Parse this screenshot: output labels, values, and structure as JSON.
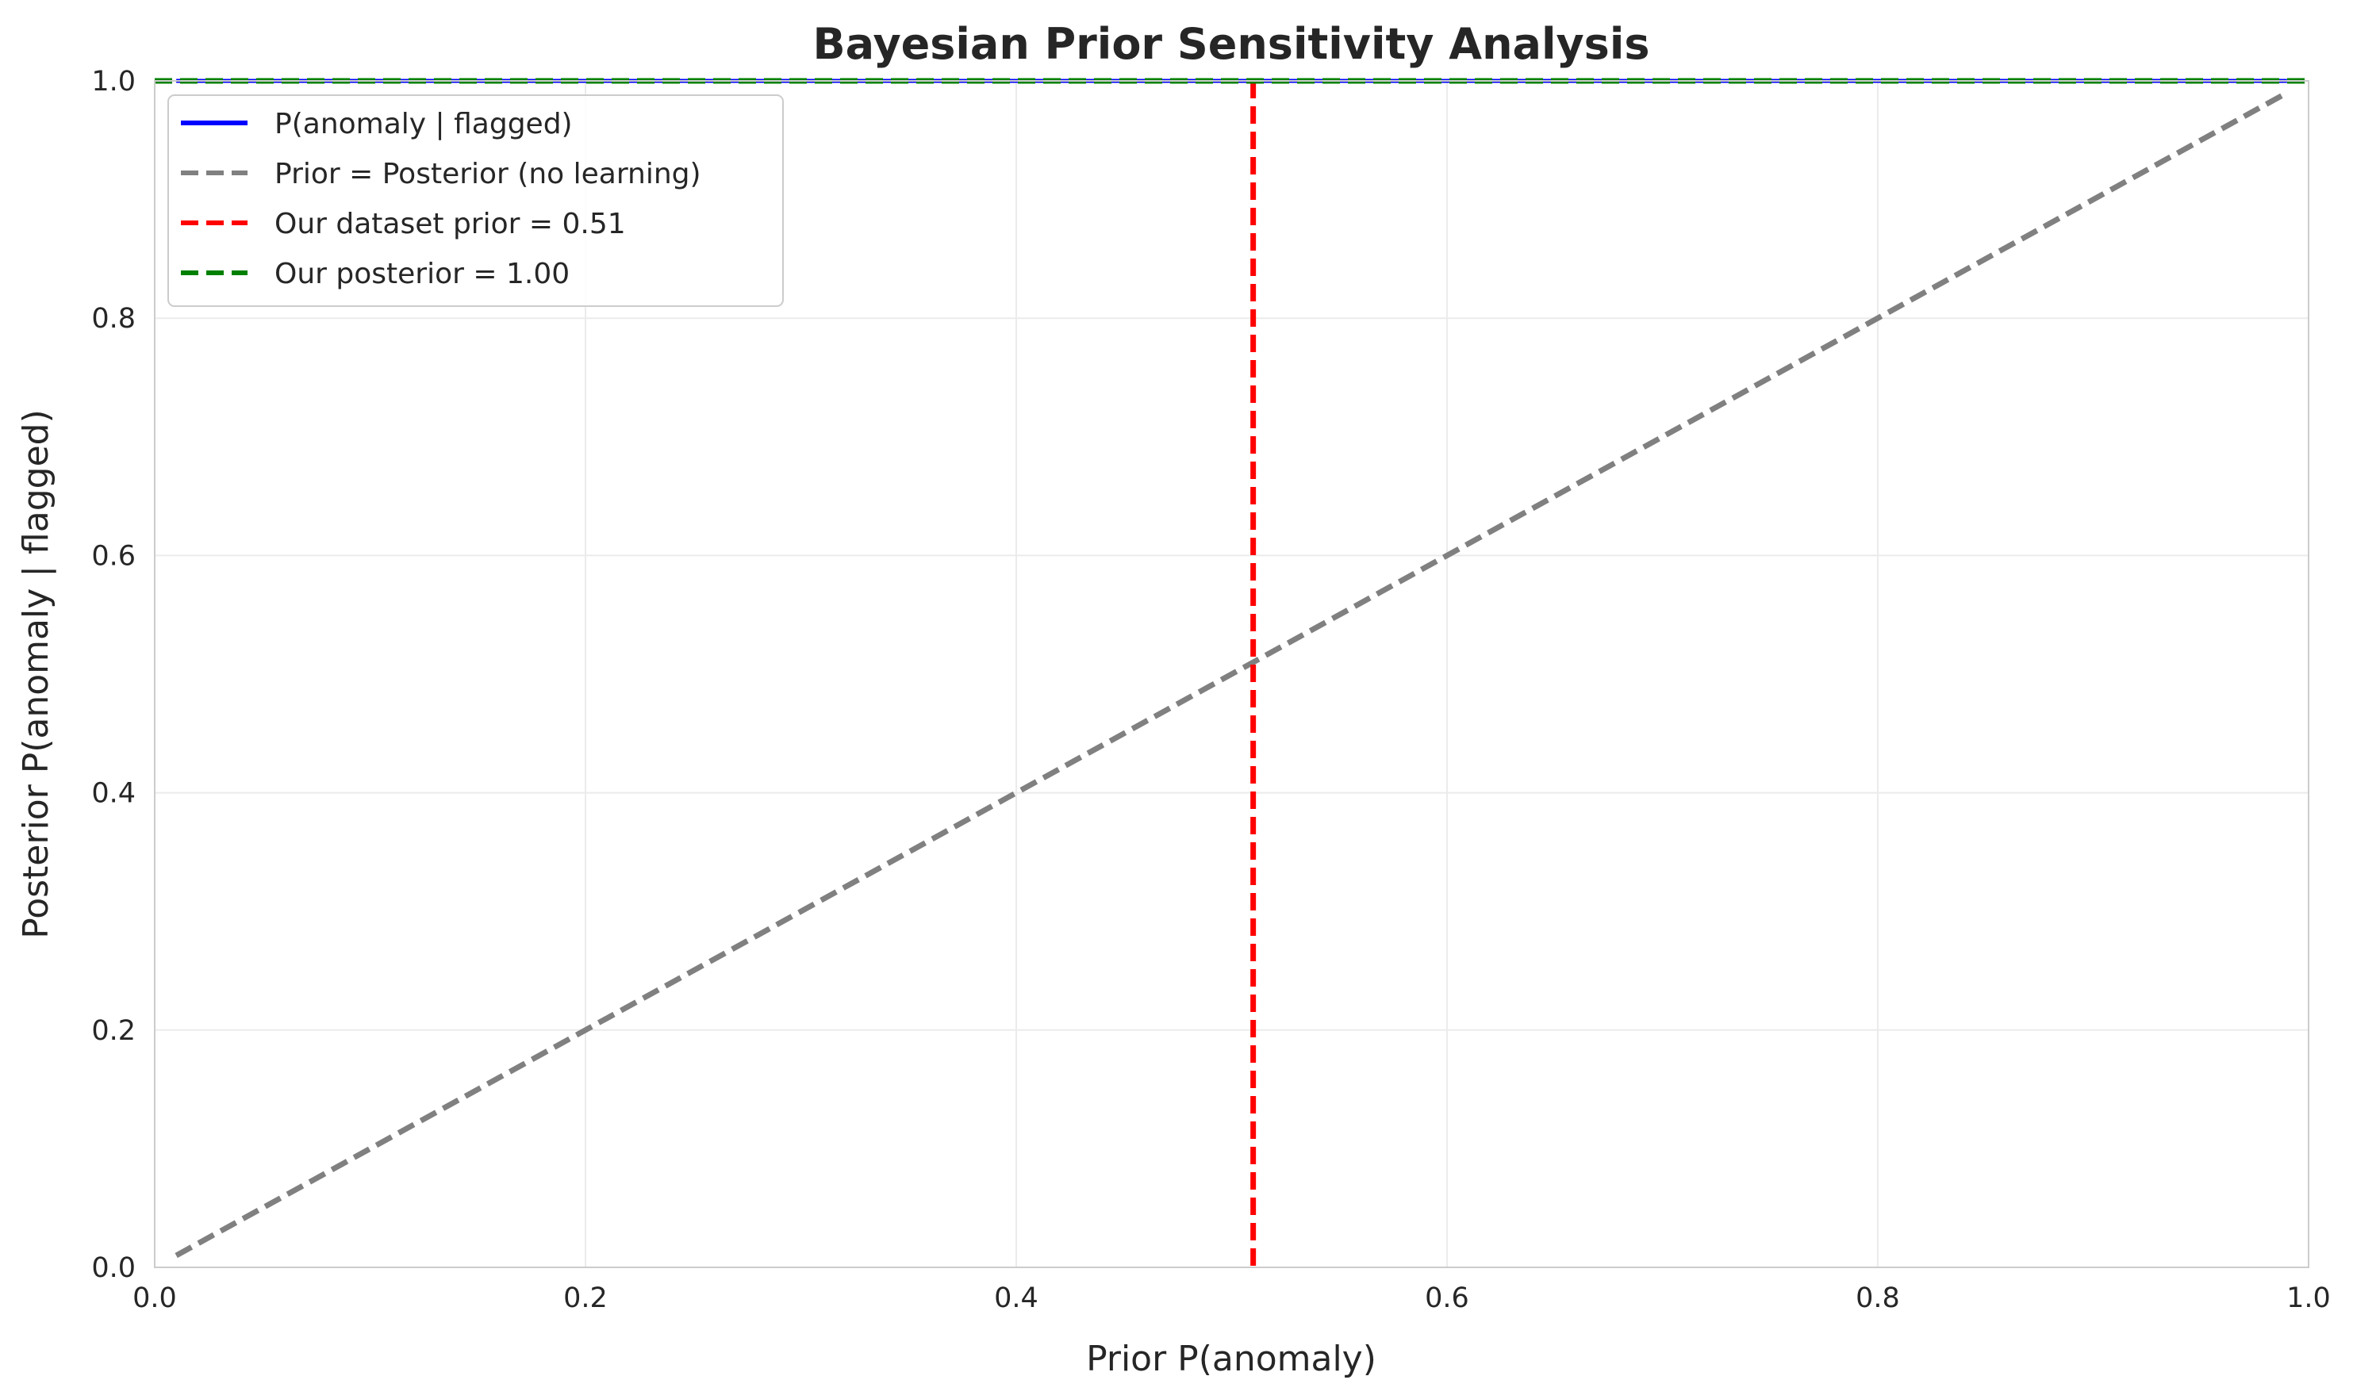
{
  "chart_data": {
    "type": "line",
    "title": "Bayesian Prior Sensitivity Analysis",
    "xlabel": "Prior P(anomaly)",
    "ylabel": "Posterior P(anomaly | flagged)",
    "xlim": [
      0.0,
      1.0
    ],
    "ylim": [
      0.0,
      1.0
    ],
    "xticks": [
      0.0,
      0.2,
      0.4,
      0.6,
      0.8,
      1.0
    ],
    "yticks": [
      0.0,
      0.2,
      0.4,
      0.6,
      0.8,
      1.0
    ],
    "xtick_labels": [
      "0.0",
      "0.2",
      "0.4",
      "0.6",
      "0.8",
      "1.0"
    ],
    "ytick_labels": [
      "0.0",
      "0.2",
      "0.4",
      "0.6",
      "0.8",
      "1.0"
    ],
    "grid": true,
    "legend_position": "top-left",
    "series": [
      {
        "name": "P(anomaly | flagged)",
        "kind": "line",
        "style": "solid",
        "color": "#0000ff",
        "x": [
          0.01,
          0.99
        ],
        "y": [
          1.0,
          1.0
        ]
      },
      {
        "name": "Prior = Posterior (no learning)",
        "kind": "line",
        "style": "dashed",
        "color": "#808080",
        "x": [
          0.01,
          0.99
        ],
        "y": [
          0.01,
          0.99
        ]
      },
      {
        "name": "Our dataset prior = 0.51",
        "kind": "vline",
        "style": "dashed",
        "color": "#ff0000",
        "x": 0.51
      },
      {
        "name": "Our posterior = 1.00",
        "kind": "hline",
        "style": "dashed",
        "color": "#008000",
        "y": 1.0
      }
    ]
  }
}
